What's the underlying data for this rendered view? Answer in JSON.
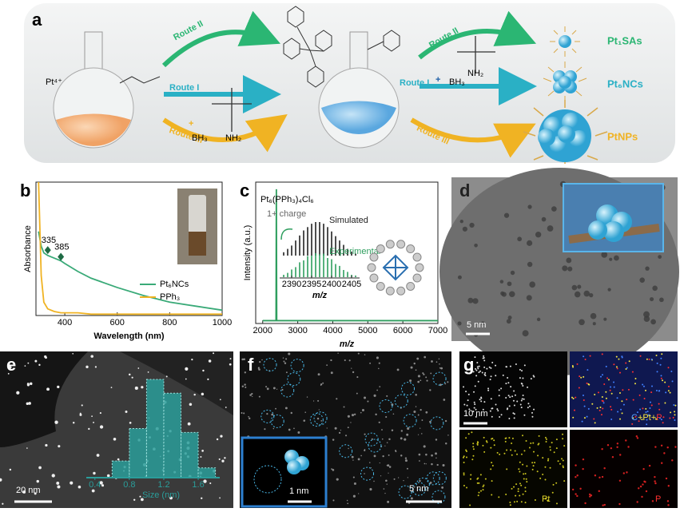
{
  "panel_a": {
    "label": "a",
    "precursor": "Pt⁴⁺",
    "routes_left": [
      "Route II",
      "Route I",
      "Route III"
    ],
    "routes_right": [
      "Route II",
      "Route I",
      "Route III"
    ],
    "reagents_left": [
      "BH₃",
      "NH₂"
    ],
    "reagents_right": [
      "NH₂",
      "BH₃"
    ],
    "products": [
      "Pt₁SAs",
      "Pt₆NCs",
      "PtNPs"
    ]
  },
  "panel_d": {
    "label": "d",
    "scale_bar": "5 nm"
  },
  "panel_f": {
    "label": "f",
    "scale_bar": "5 nm",
    "inset_scale_bar": "1 nm"
  },
  "panel_g": {
    "label": "g",
    "scale_bar": "10 nm",
    "overlay_legend": [
      "C",
      "+Pt+",
      "P"
    ],
    "maps": [
      "Pt",
      "P"
    ]
  },
  "chart_data": [
    {
      "type": "line",
      "label": "b",
      "x_label": "Wavelength (nm)",
      "y_label": "Absorbance",
      "x": [
        300,
        310,
        320,
        335,
        360,
        385,
        400,
        450,
        500,
        600,
        700,
        800,
        900,
        1000
      ],
      "series": [
        {
          "name": "Pt₆NCs",
          "color": "#3aaa78",
          "values": [
            0.63,
            0.52,
            0.47,
            0.45,
            0.43,
            0.41,
            0.39,
            0.33,
            0.28,
            0.21,
            0.15,
            0.1,
            0.07,
            0.04
          ]
        },
        {
          "name": "PPh₃",
          "color": "#f0b323",
          "values": [
            1,
            0.3,
            0.1,
            0.05,
            0.03,
            0.02,
            0.02,
            0.02,
            0.01,
            0.01,
            0.01,
            0.01,
            0.01,
            0.01
          ]
        }
      ],
      "xlim": [
        290,
        1000
      ],
      "ylim": [
        0,
        1
      ],
      "xticks": [
        400,
        600,
        800,
        1000
      ],
      "annotations": [
        {
          "text": "335",
          "x": 335,
          "y": 0.49
        },
        {
          "text": "385",
          "x": 385,
          "y": 0.44
        }
      ]
    },
    {
      "type": "line",
      "label": "c",
      "formula": "Pt₆(PPh₃)₄Cl₆",
      "charge": "1+ charge",
      "x_label": "m/z",
      "y_label": "Intensity (a.u.)",
      "x": [
        2000,
        2380,
        2390,
        2400,
        2420,
        3000,
        4000,
        5000,
        6000,
        7000
      ],
      "series": [
        {
          "color": "#2e9e5e",
          "values": [
            0.02,
            0.02,
            0.95,
            0.02,
            0.02,
            0.02,
            0.02,
            0.02,
            0.02,
            0.02
          ]
        }
      ],
      "xlim": [
        1800,
        7000
      ],
      "ylim": [
        0,
        1
      ],
      "xticks": [
        2000,
        3000,
        4000,
        5000,
        6000,
        7000
      ],
      "inset": {
        "x_label": "m/z",
        "xlim": [
          2387,
          2407
        ],
        "xticks": [
          2390,
          2395,
          2400,
          2405
        ],
        "x": [
          2388,
          2389,
          2390,
          2391,
          2392,
          2393,
          2394,
          2395,
          2396,
          2397,
          2398,
          2399,
          2400,
          2401,
          2402,
          2403,
          2404,
          2405,
          2406
        ],
        "series": [
          {
            "name": "Simulated",
            "color": "#222222",
            "values": [
              0.1,
              0.2,
              0.3,
              0.45,
              0.6,
              0.75,
              0.85,
              0.95,
              1,
              1,
              0.95,
              0.85,
              0.72,
              0.58,
              0.45,
              0.32,
              0.2,
              0.12,
              0.06
            ]
          },
          {
            "name": "Experimental",
            "color": "#2e9e5e",
            "values": [
              0.1,
              0.18,
              0.32,
              0.42,
              0.62,
              0.7,
              0.88,
              0.9,
              1,
              0.96,
              0.98,
              0.8,
              0.75,
              0.55,
              0.47,
              0.3,
              0.22,
              0.1,
              0.07
            ]
          }
        ]
      }
    },
    {
      "type": "histogram",
      "label": "e",
      "x_label": "Size (nm)",
      "scale_bar": "20 nm",
      "bins": [
        0.6,
        0.8,
        1.0,
        1.2,
        1.4,
        1.6,
        1.8
      ],
      "values": [
        0.17,
        0.5,
        1.0,
        0.86,
        0.46,
        0.1
      ],
      "color": "#2a9d9a",
      "xlim": [
        0.3,
        1.85
      ],
      "ylim": [
        0,
        1
      ],
      "xticks": [
        0.4,
        0.8,
        1.2,
        1.6
      ]
    }
  ]
}
